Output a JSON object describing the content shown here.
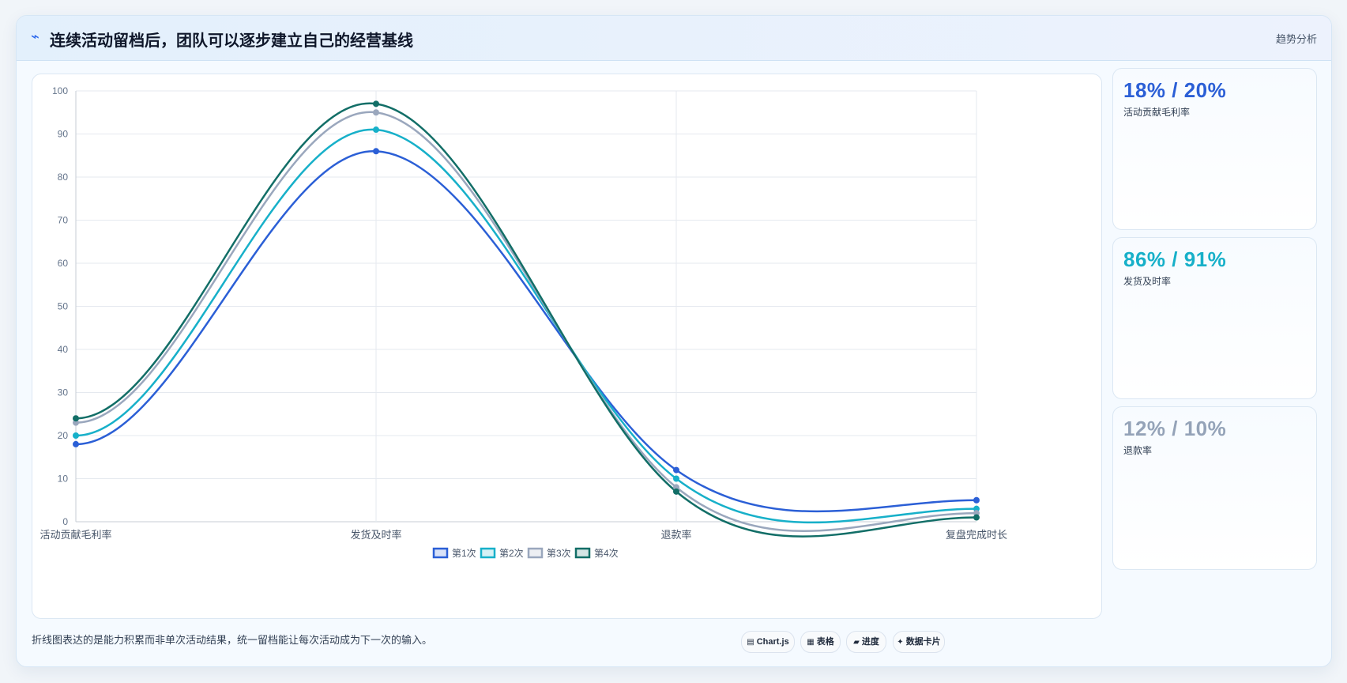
{
  "header": {
    "icon": "trend-arrow-icon",
    "title": "连续活动留档后，团队可以逐步建立自己的经营基线",
    "link": "趋势分析"
  },
  "chart_data": {
    "type": "line",
    "categories": [
      "活动贡献毛利率",
      "发货及时率",
      "退款率",
      "复盘完成时长"
    ],
    "ylim": [
      0,
      100
    ],
    "yticks": [
      0,
      10,
      20,
      30,
      40,
      50,
      60,
      70,
      80,
      90,
      100
    ],
    "grid": true,
    "smooth": true,
    "legend_position": "bottom",
    "series": [
      {
        "name": "第1次",
        "color": "#2b5fd6",
        "values": [
          18,
          86,
          12,
          5
        ]
      },
      {
        "name": "第2次",
        "color": "#17b0c9",
        "values": [
          20,
          91,
          10,
          3
        ]
      },
      {
        "name": "第3次",
        "color": "#9aa7bd",
        "values": [
          23,
          95,
          8,
          2
        ]
      },
      {
        "name": "第4次",
        "color": "#126e67",
        "values": [
          24,
          97,
          7,
          1
        ]
      }
    ]
  },
  "stats": [
    {
      "value": "18% / 20%",
      "label": "活动贡献毛利率",
      "color": "#2b5fd6"
    },
    {
      "value": "86% / 91%",
      "label": "发货及时率",
      "color": "#17b0c9"
    },
    {
      "value": "12% / 10%",
      "label": "退款率",
      "color": "#94a3b8"
    }
  ],
  "footer": {
    "note": "折线图表达的是能力积累而非单次活动结果，统一留档能让每次活动成为下一次的输入。",
    "tags": [
      {
        "icon": "▤",
        "label": "Chart.js"
      },
      {
        "icon": "▦",
        "label": "表格"
      },
      {
        "icon": "▰",
        "label": "进度"
      },
      {
        "icon": "✦",
        "label": "数据卡片"
      }
    ]
  }
}
